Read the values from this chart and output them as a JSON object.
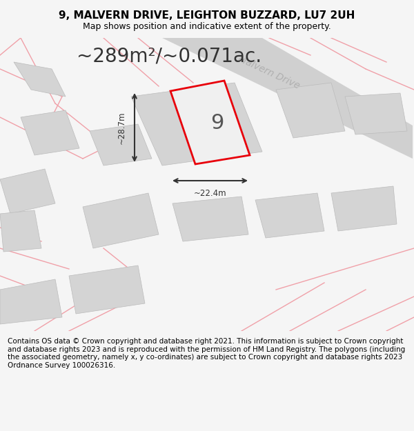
{
  "title": "9, MALVERN DRIVE, LEIGHTON BUZZARD, LU7 2UH",
  "subtitle": "Map shows position and indicative extent of the property.",
  "area_text": "~289m²/~0.071ac.",
  "label_9": "9",
  "dim_width": "~22.4m",
  "dim_height": "~28.7m",
  "road_label": "Malvern Drive",
  "footer": "Contains OS data © Crown copyright and database right 2021. This information is subject to Crown copyright and database rights 2023 and is reproduced with the permission of HM Land Registry. The polygons (including the associated geometry, namely x, y co-ordinates) are subject to Crown copyright and database rights 2023 Ordnance Survey 100026316.",
  "bg_color": "#f5f5f5",
  "map_bg": "#ffffff",
  "plot_color": "#e8000a",
  "road_color": "#d4d4d4",
  "building_color": "#d4d4d4",
  "light_line_color": "#f0a0a8",
  "title_fontsize": 11,
  "subtitle_fontsize": 9,
  "area_fontsize": 20,
  "footer_fontsize": 7.5
}
